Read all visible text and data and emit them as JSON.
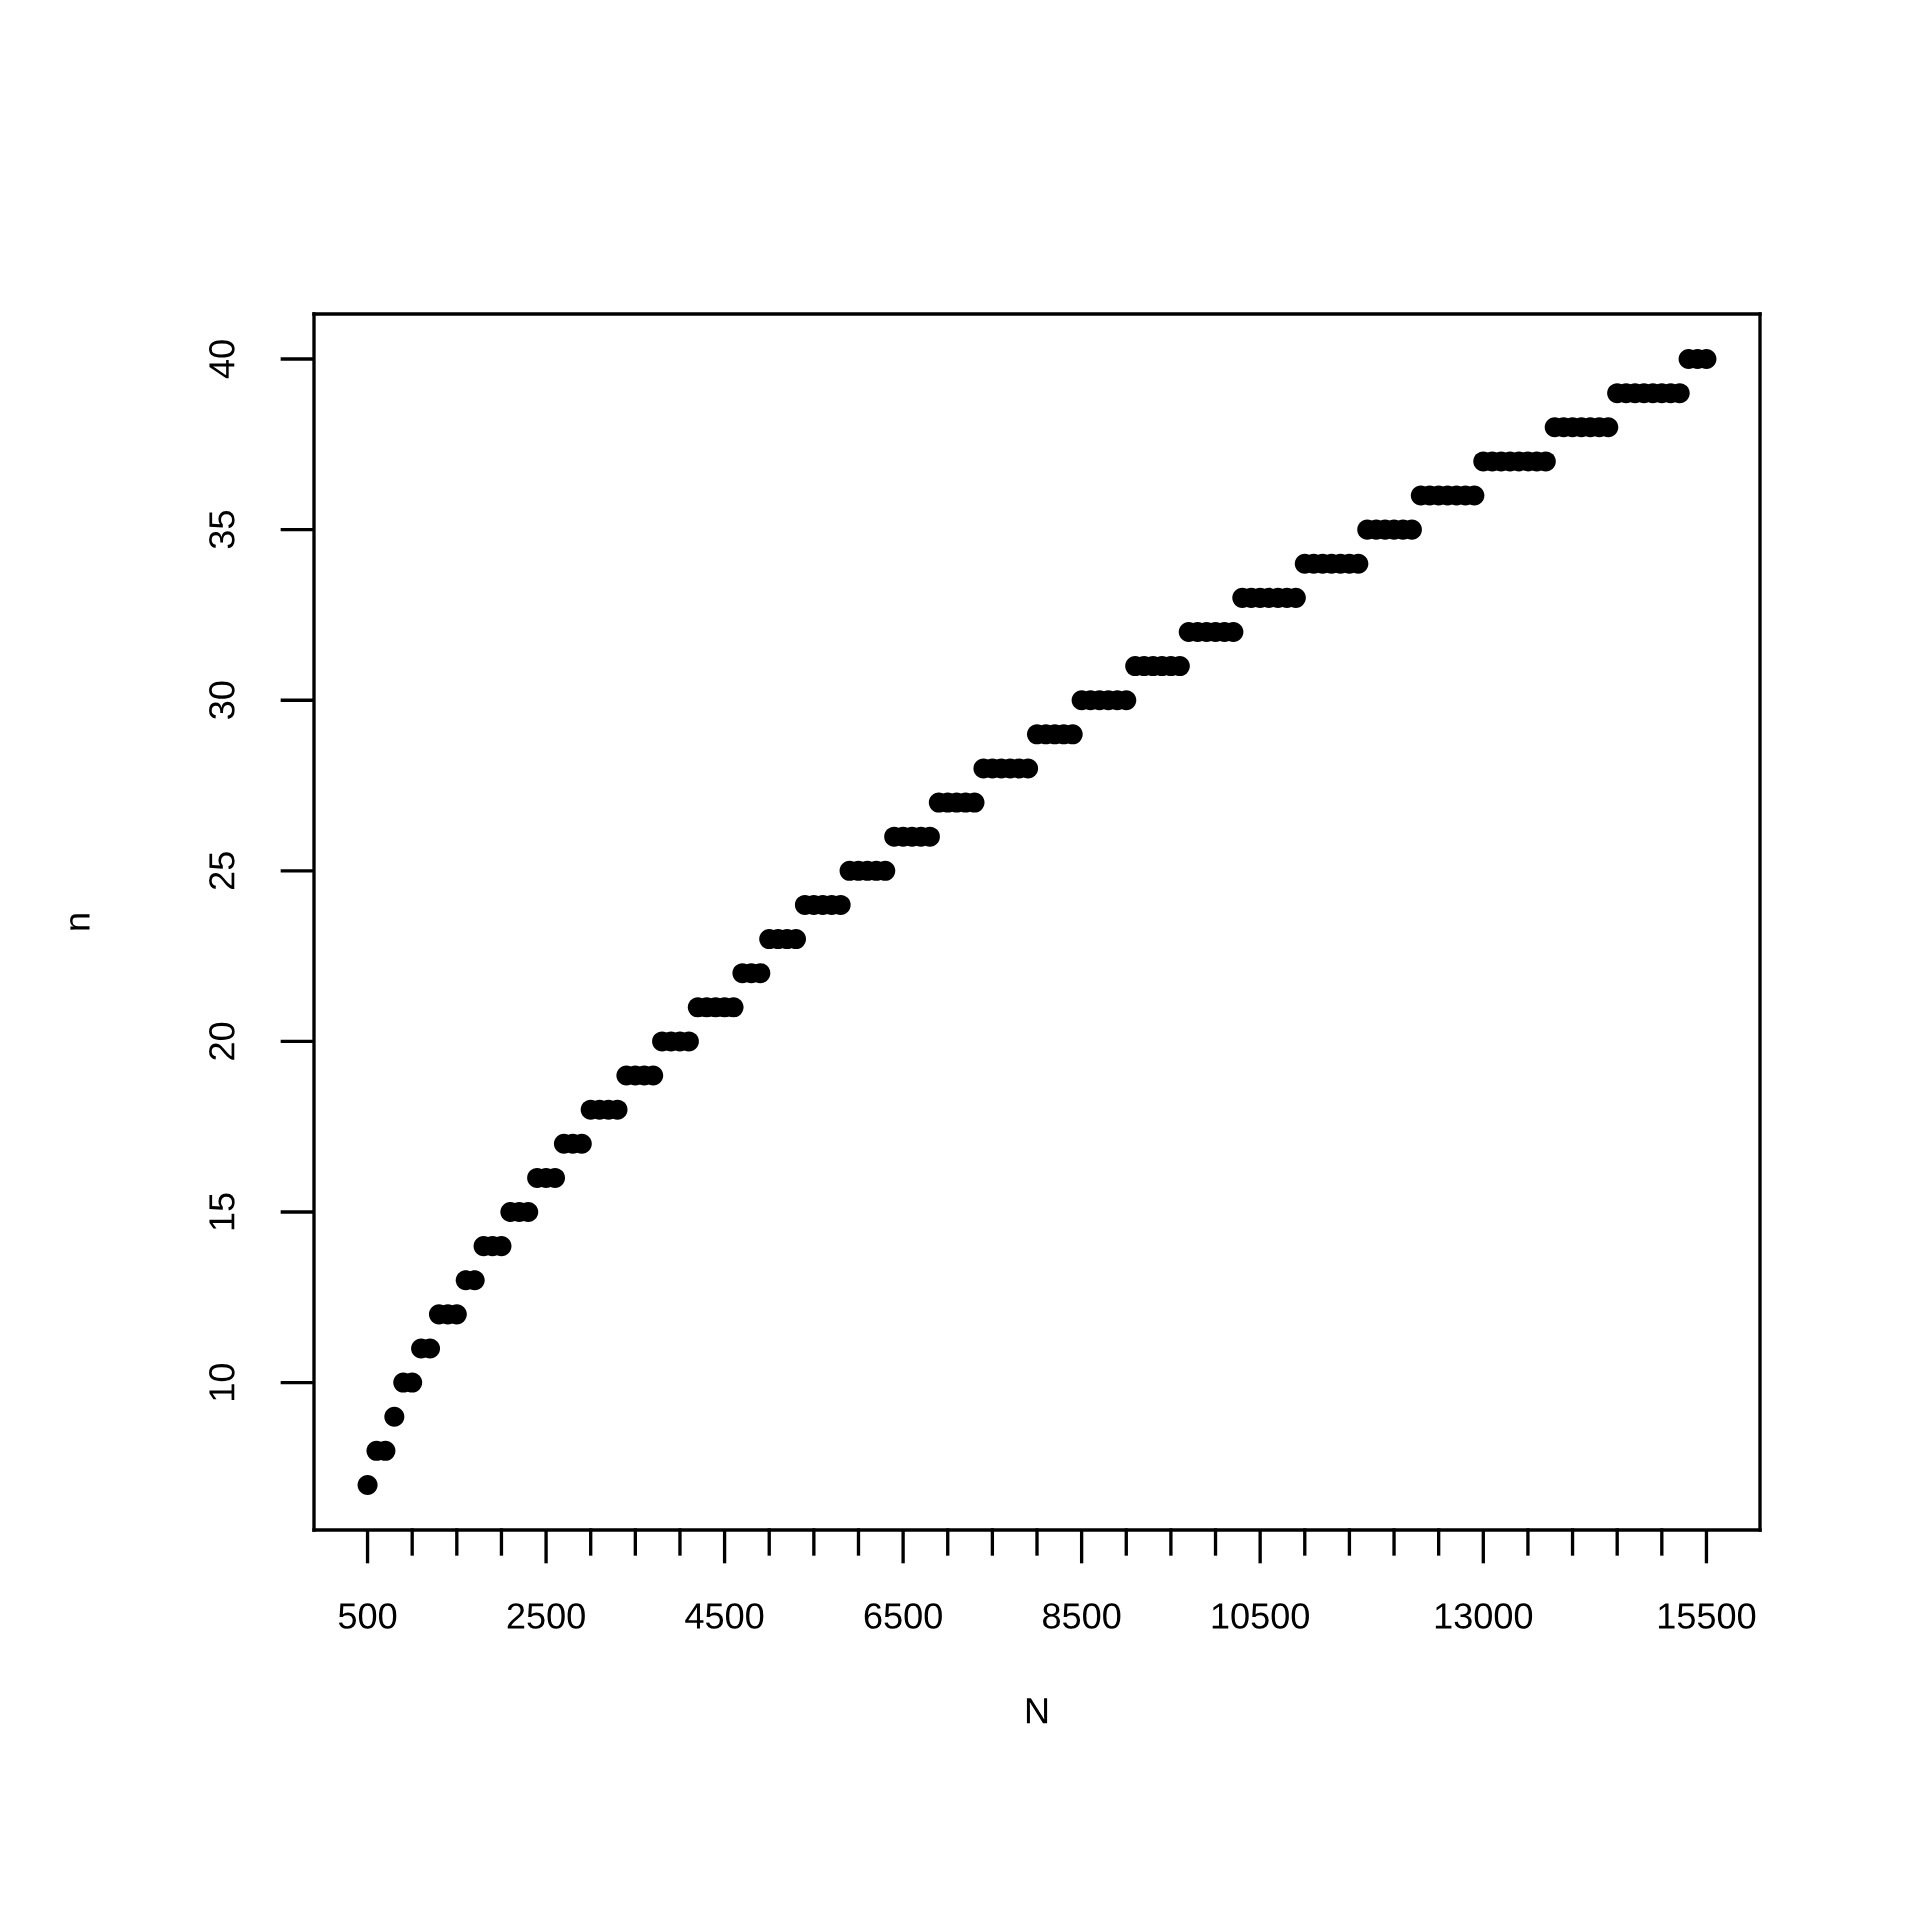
{
  "chart_data": {
    "type": "scatter",
    "xlabel": "N",
    "ylabel": "n",
    "marker": "circle",
    "xlim": [
      -100,
      16100
    ],
    "ylim": [
      5.68,
      41.32
    ],
    "xticks": [
      500,
      {
        "value": 1000,
        "label": null
      },
      {
        "value": 1500,
        "label": null
      },
      {
        "value": 2000,
        "label": null
      },
      2500,
      {
        "value": 3000,
        "label": null
      },
      {
        "value": 3500,
        "label": null
      },
      {
        "value": 4000,
        "label": null
      },
      4500,
      {
        "value": 5000,
        "label": null
      },
      {
        "value": 5500,
        "label": null
      },
      {
        "value": 6000,
        "label": null
      },
      6500,
      {
        "value": 7000,
        "label": null
      },
      {
        "value": 7500,
        "label": null
      },
      {
        "value": 8000,
        "label": null
      },
      8500,
      {
        "value": 9000,
        "label": null
      },
      {
        "value": 9500,
        "label": null
      },
      {
        "value": 10000,
        "label": null
      },
      10500,
      {
        "value": 11000,
        "label": null
      },
      {
        "value": 11500,
        "label": null
      },
      {
        "value": 12000,
        "label": null
      },
      {
        "value": 12500,
        "label": null
      },
      13000,
      {
        "value": 13500,
        "label": null
      },
      {
        "value": 14000,
        "label": null
      },
      {
        "value": 14500,
        "label": null
      },
      {
        "value": 15000,
        "label": null
      },
      15500
    ],
    "yticks": [
      10,
      15,
      20,
      25,
      30,
      35,
      40
    ],
    "series": [
      {
        "color": "#000000",
        "x": [
          500,
          600,
          700,
          800,
          900,
          1000,
          1100,
          1200,
          1300,
          1400,
          1500,
          1600,
          1700,
          1800,
          1900,
          2000,
          2100,
          2200,
          2300,
          2400,
          2500,
          2600,
          2700,
          2800,
          2900,
          3000,
          3100,
          3200,
          3300,
          3400,
          3500,
          3600,
          3700,
          3800,
          3900,
          4000,
          4100,
          4200,
          4300,
          4400,
          4500,
          4600,
          4700,
          4800,
          4900,
          5000,
          5100,
          5200,
          5300,
          5400,
          5500,
          5600,
          5700,
          5800,
          5900,
          6000,
          6100,
          6200,
          6300,
          6400,
          6500,
          6600,
          6700,
          6800,
          6900,
          7000,
          7100,
          7200,
          7300,
          7400,
          7500,
          7600,
          7700,
          7800,
          7900,
          8000,
          8100,
          8200,
          8300,
          8400,
          8500,
          8600,
          8700,
          8800,
          8900,
          9000,
          9100,
          9200,
          9300,
          9400,
          9500,
          9600,
          9700,
          9800,
          9900,
          10000,
          10100,
          10200,
          10300,
          10400,
          10500,
          10600,
          10700,
          10800,
          10900,
          11000,
          11100,
          11200,
          11300,
          11400,
          11500,
          11600,
          11700,
          11800,
          11900,
          12000,
          12100,
          12200,
          12300,
          12400,
          12500,
          12600,
          12700,
          12800,
          12900,
          13000,
          13100,
          13200,
          13300,
          13400,
          13500,
          13600,
          13700,
          13800,
          13900,
          14000,
          14100,
          14200,
          14300,
          14400,
          14500,
          14600,
          14700,
          14800,
          14900,
          15000,
          15100,
          15200,
          15300,
          15400,
          15500
        ],
        "values": [
          7,
          8,
          8,
          9,
          10,
          10,
          11,
          11,
          12,
          12,
          12,
          13,
          13,
          14,
          14,
          14,
          15,
          15,
          15,
          16,
          16,
          16,
          17,
          17,
          17,
          18,
          18,
          18,
          18,
          19,
          19,
          19,
          19,
          20,
          20,
          20,
          20,
          21,
          21,
          21,
          21,
          21,
          22,
          22,
          22,
          23,
          23,
          23,
          23,
          24,
          24,
          24,
          24,
          24,
          25,
          25,
          25,
          25,
          25,
          26,
          26,
          26,
          26,
          26,
          27,
          27,
          27,
          27,
          27,
          28,
          28,
          28,
          28,
          28,
          28,
          29,
          29,
          29,
          29,
          29,
          30,
          30,
          30,
          30,
          30,
          30,
          31,
          31,
          31,
          31,
          31,
          31,
          32,
          32,
          32,
          32,
          32,
          32,
          33,
          33,
          33,
          33,
          33,
          33,
          33,
          34,
          34,
          34,
          34,
          34,
          34,
          34,
          35,
          35,
          35,
          35,
          35,
          35,
          36,
          36,
          36,
          36,
          36,
          36,
          36,
          37,
          37,
          37,
          37,
          37,
          37,
          37,
          37,
          38,
          38,
          38,
          38,
          38,
          38,
          38,
          39,
          39,
          39,
          39,
          39,
          39,
          39,
          39,
          40,
          40,
          40
        ]
      }
    ]
  }
}
